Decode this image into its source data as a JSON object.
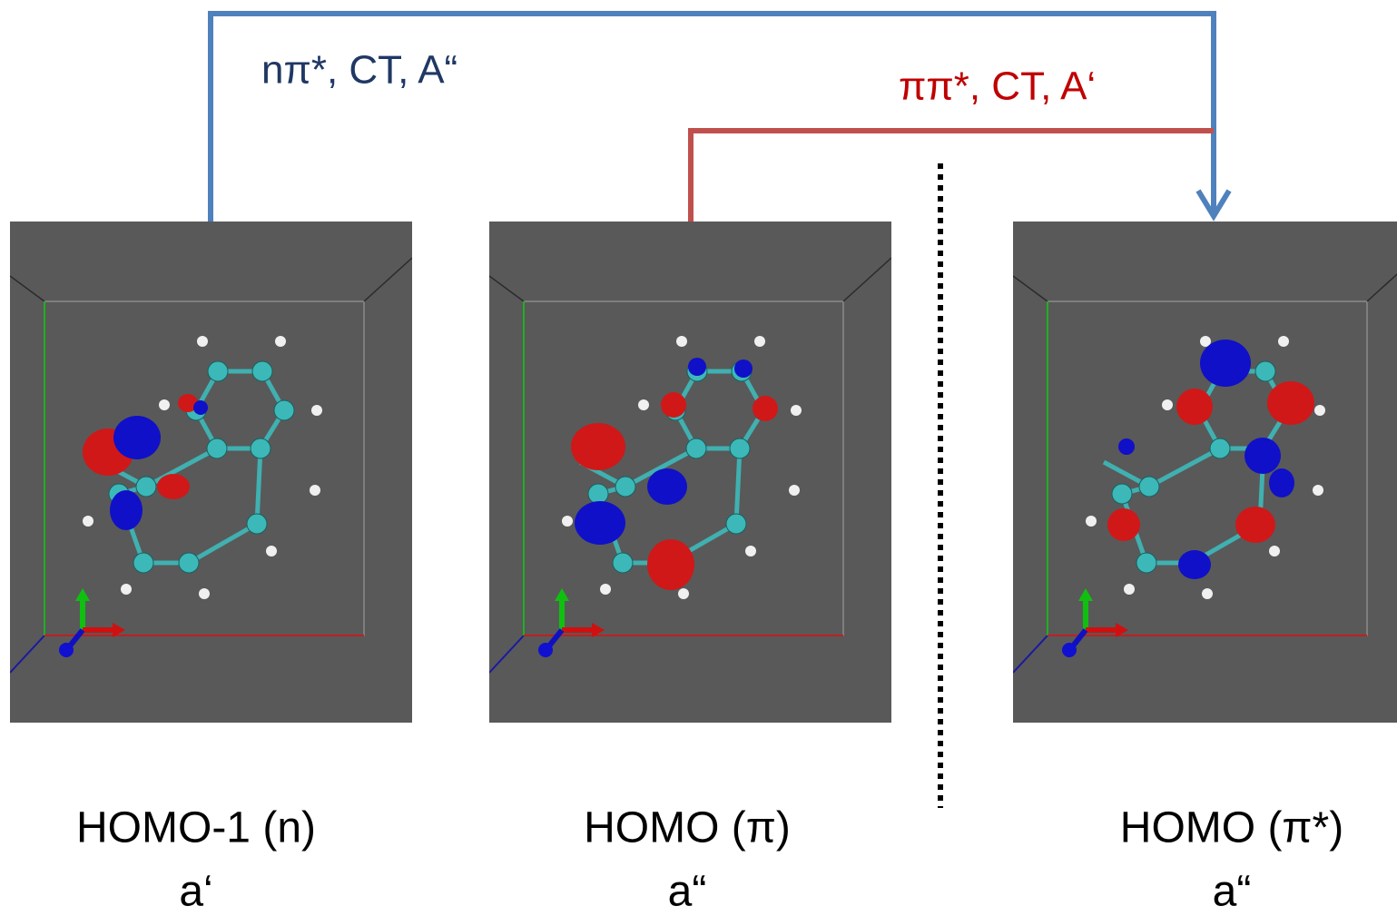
{
  "transitions": [
    {
      "label": "nπ*, CT, A“"
    },
    {
      "label": "ππ*, CT, A‘"
    }
  ],
  "orbitals": [
    {
      "name": "HOMO-1 (n)",
      "symmetry": "a‘"
    },
    {
      "name": "HOMO (π)",
      "symmetry": "a“"
    },
    {
      "name": "HOMO (π*)",
      "symmetry": "a“"
    }
  ]
}
